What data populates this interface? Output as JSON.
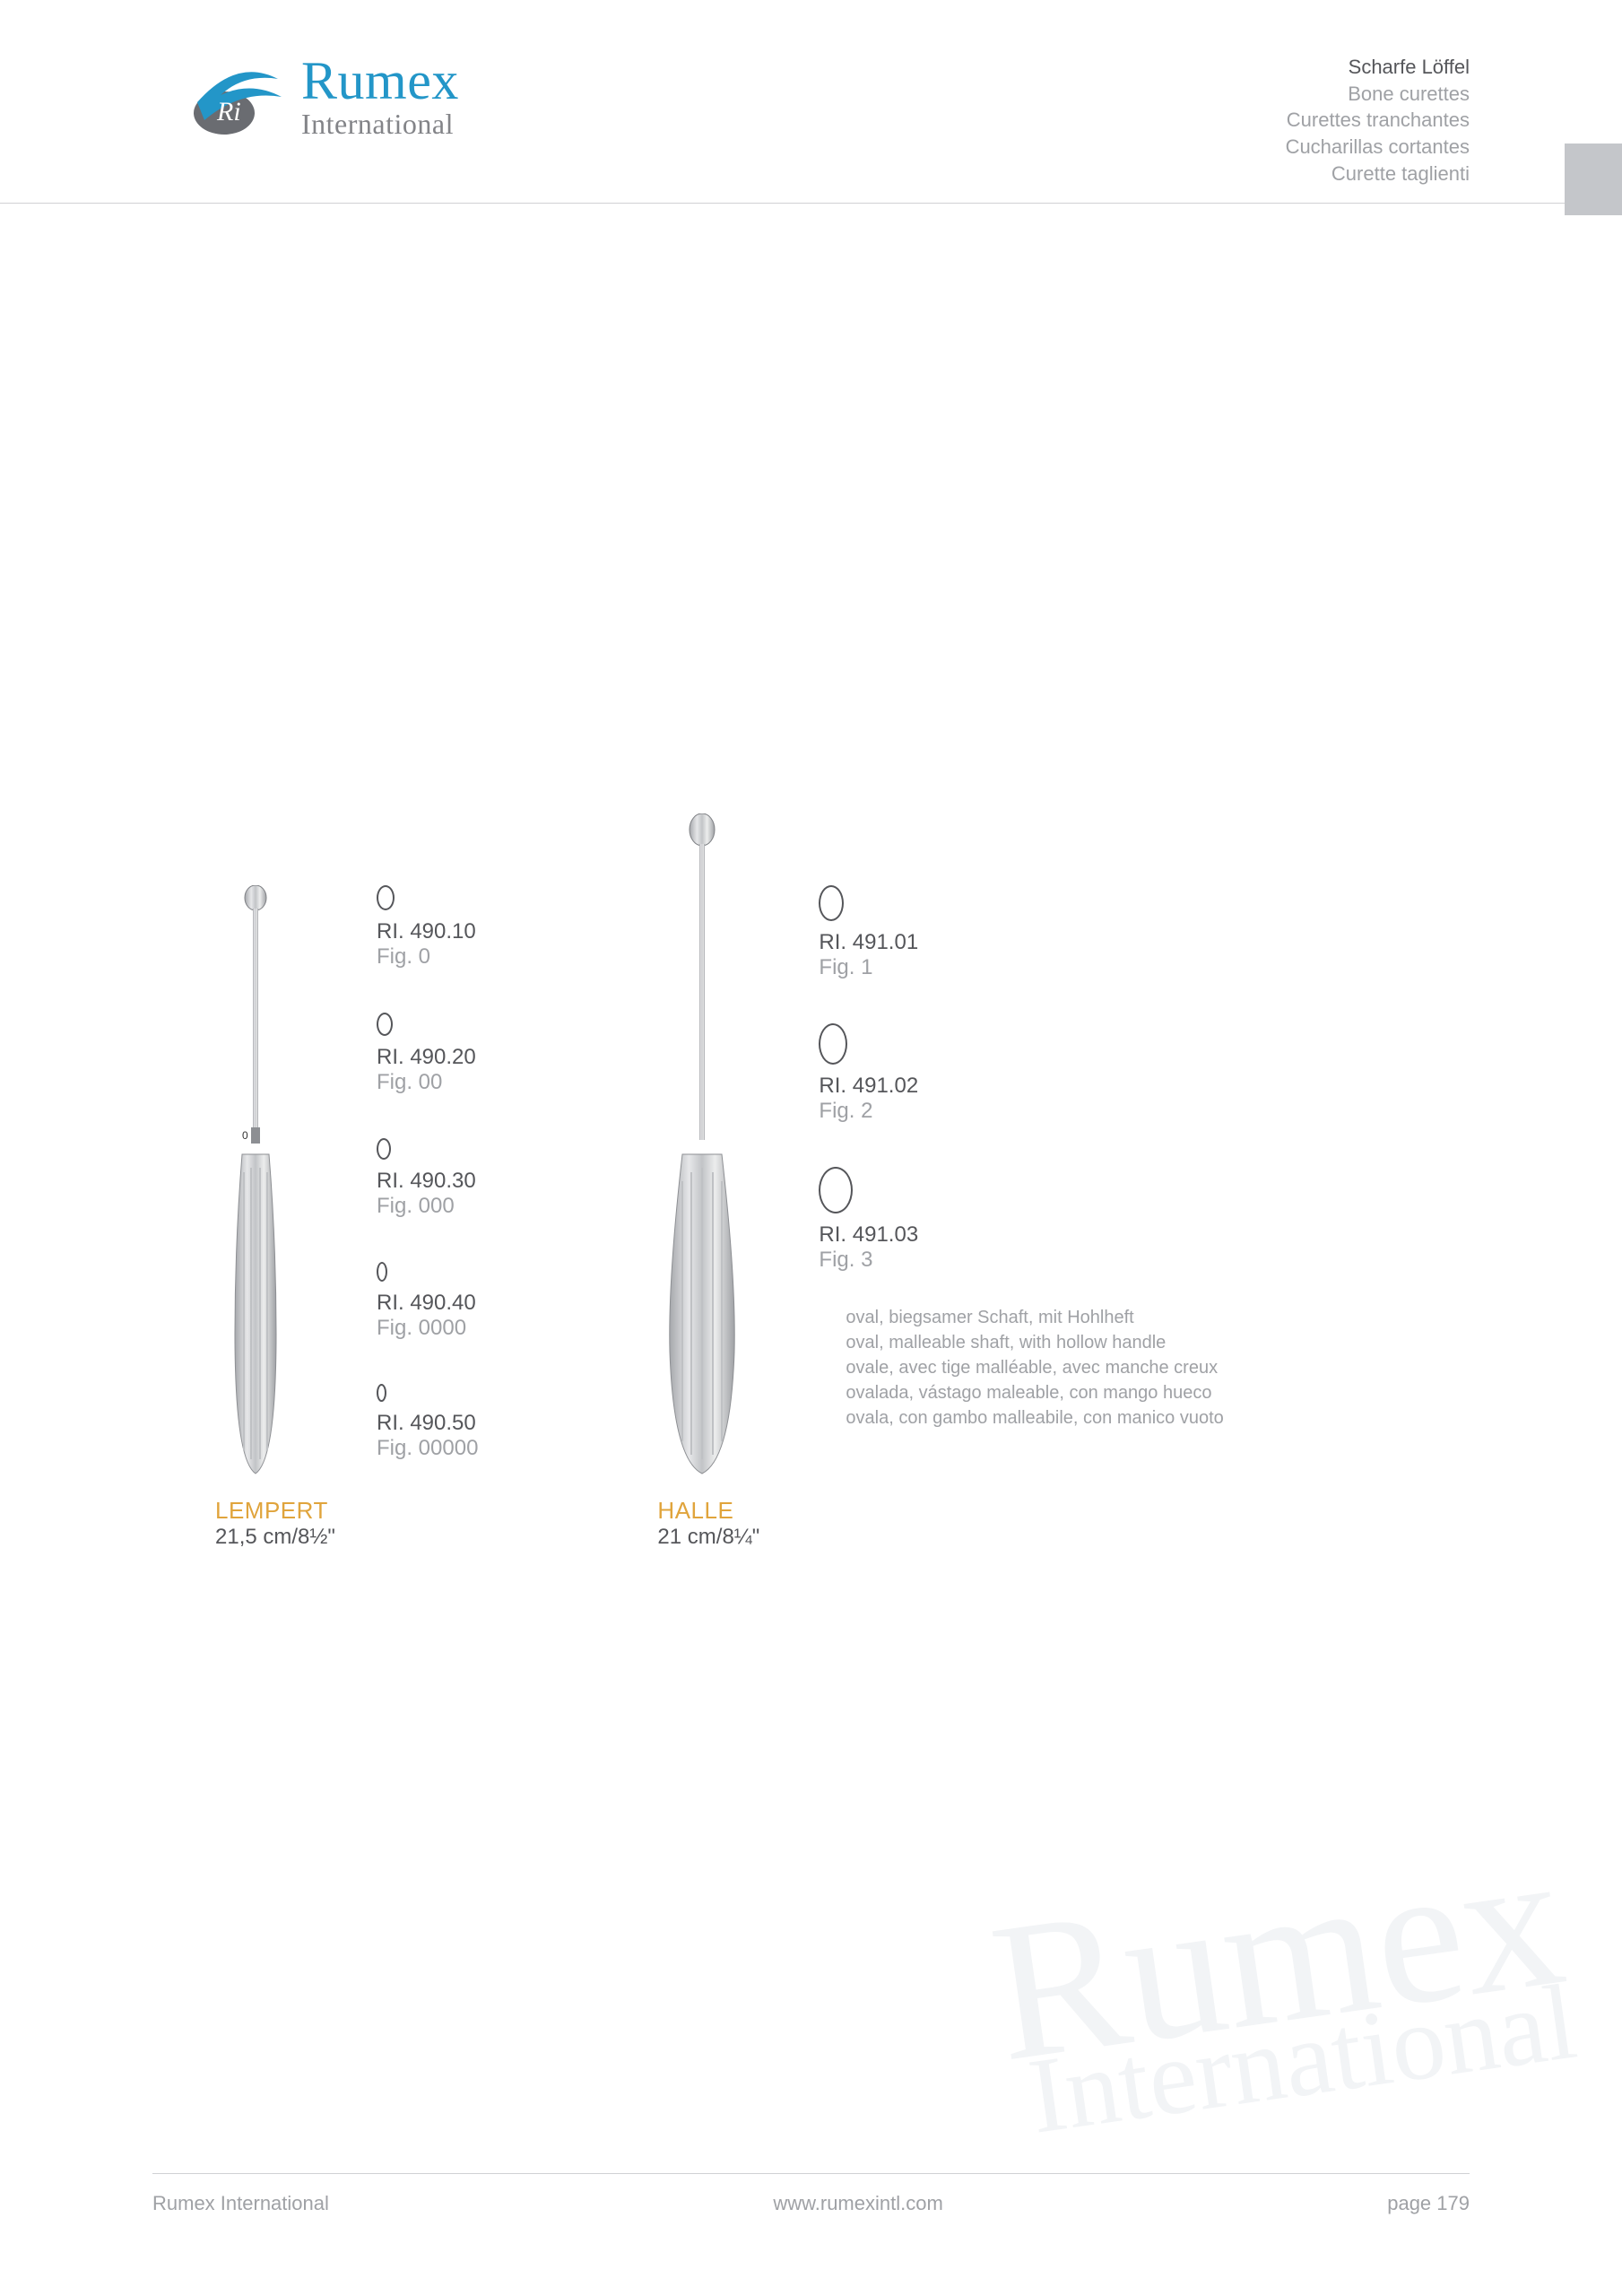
{
  "logo": {
    "name": "Rumex",
    "sub": "International",
    "mark_colors": {
      "swoosh": "#2396c8",
      "oval": "#6a6c71"
    }
  },
  "header_titles": {
    "de": "Scharfe Löffel",
    "en": "Bone curettes",
    "fr": "Curettes tranchantes",
    "es": "Cucharillas cortantes",
    "it": "Curette taglienti"
  },
  "products": [
    {
      "key": "lempert",
      "name": "LEMPERT",
      "size": "21,5 cm/8½\"",
      "variants": [
        {
          "sku": "RI. 490.10",
          "fig": "Fig. 0",
          "oval_w": 20,
          "oval_h": 28
        },
        {
          "sku": "RI. 490.20",
          "fig": "Fig. 00",
          "oval_w": 18,
          "oval_h": 26
        },
        {
          "sku": "RI. 490.30",
          "fig": "Fig. 000",
          "oval_w": 16,
          "oval_h": 24
        },
        {
          "sku": "RI. 490.40",
          "fig": "Fig. 0000",
          "oval_w": 12,
          "oval_h": 22
        },
        {
          "sku": "RI. 490.50",
          "fig": "Fig. 00000",
          "oval_w": 11,
          "oval_h": 20
        }
      ]
    },
    {
      "key": "halle",
      "name": "HALLE",
      "size": "21 cm/8¼\"",
      "variants": [
        {
          "sku": "RI. 491.01",
          "fig": "Fig. 1",
          "oval_w": 28,
          "oval_h": 40
        },
        {
          "sku": "RI. 491.02",
          "fig": "Fig. 2",
          "oval_w": 32,
          "oval_h": 46
        },
        {
          "sku": "RI. 491.03",
          "fig": "Fig. 3",
          "oval_w": 38,
          "oval_h": 52
        }
      ],
      "desc": [
        "oval, biegsamer Schaft, mit Hohlheft",
        "oval, malleable shaft, with hollow handle",
        "ovale, avec tige malléable, avec manche creux",
        "ovalada, vástago maleable, con mango hueco",
        "ovala, con gambo malleabile, con manico vuoto"
      ]
    }
  ],
  "footer": {
    "left": "Rumex International",
    "center": "www.rumexintl.com",
    "right": "page 179"
  },
  "colors": {
    "text": "#55565a",
    "muted": "#9fa1a5",
    "accent": "#e0a43c",
    "brand": "#2396c8",
    "rule": "#d0d1d4",
    "side_tab": "#c4c6ca"
  }
}
